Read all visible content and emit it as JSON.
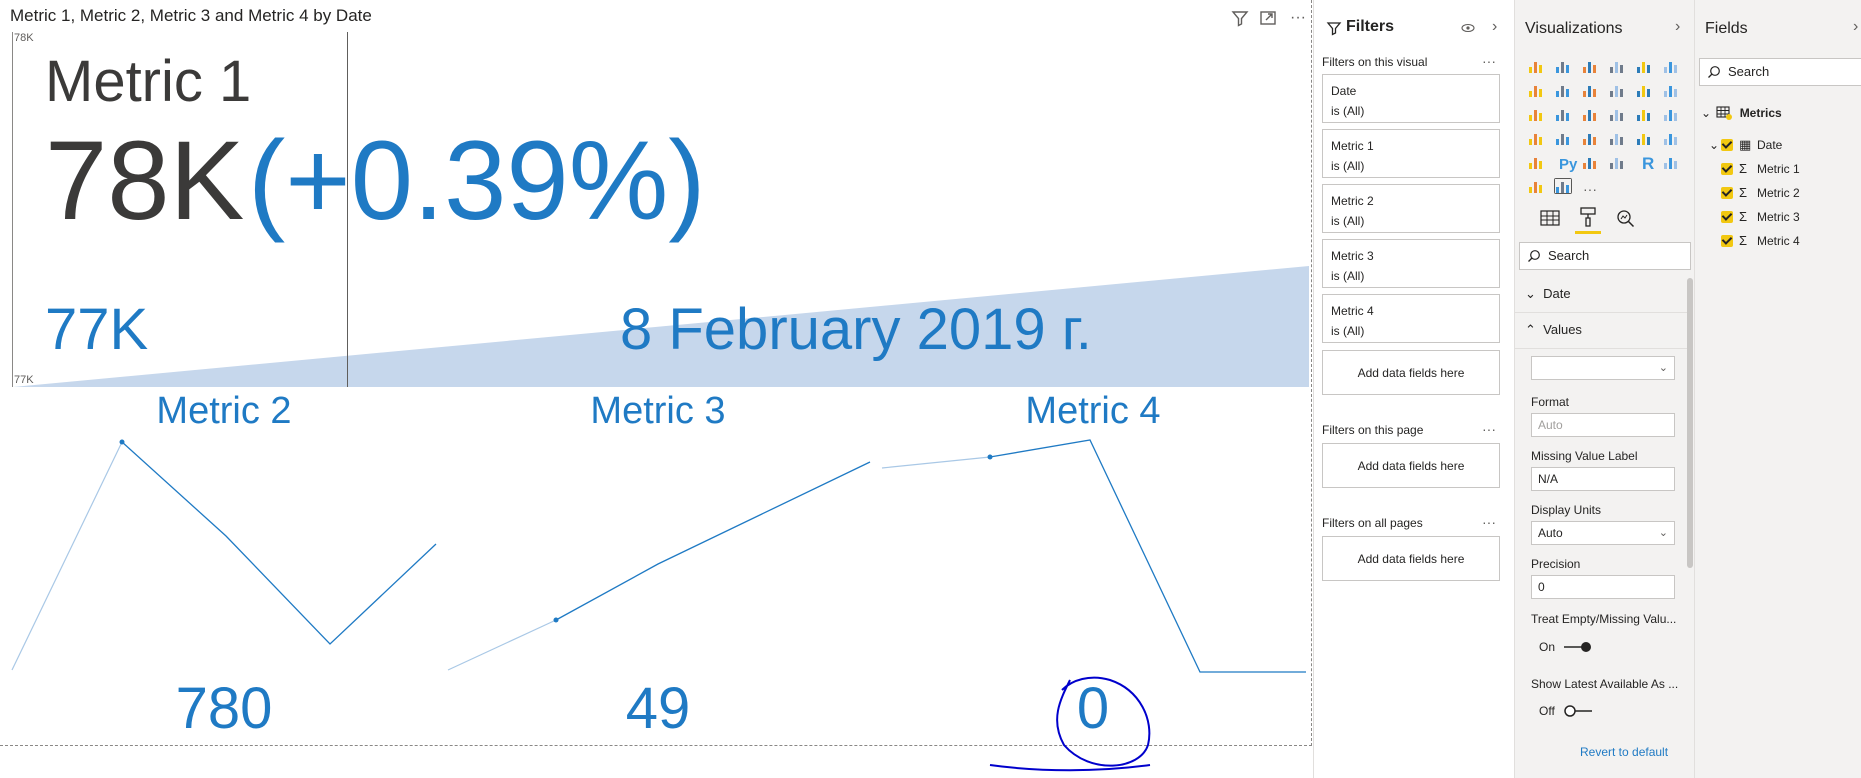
{
  "visual": {
    "title": "Metric 1, Metric 2, Metric 3 and Metric 4 by Date",
    "axis_top": "78K",
    "axis_bottom": "77K",
    "main_kpi": {
      "label": "Metric 1",
      "value": "78K",
      "change": "(+0.39%)",
      "previous": "77K",
      "date": "8 February 2019 г."
    },
    "sub_kpis": [
      {
        "label": "Metric 2",
        "value": "780"
      },
      {
        "label": "Metric 3",
        "value": "49"
      },
      {
        "label": "Metric 4",
        "value": "0"
      }
    ]
  },
  "filters": {
    "title": "Filters",
    "on_visual": "Filters on this visual",
    "cards": [
      {
        "field": "Date",
        "state": "is (All)"
      },
      {
        "field": "Metric 1",
        "state": "is (All)"
      },
      {
        "field": "Metric 2",
        "state": "is (All)"
      },
      {
        "field": "Metric 3",
        "state": "is (All)"
      },
      {
        "field": "Metric 4",
        "state": "is (All)"
      }
    ],
    "add_label": "Add data fields here",
    "on_page": "Filters on this page",
    "on_all": "Filters on all pages",
    "ellipsis": "···"
  },
  "visualizations": {
    "title": "Visualizations",
    "search_placeholder": "Search",
    "sections": {
      "date": "Date",
      "values": "Values"
    },
    "format_label": "Format",
    "format_placeholder": "Auto",
    "missing_label": "Missing Value Label",
    "missing_value": "N/A",
    "units_label": "Display Units",
    "units_value": "Auto",
    "precision_label": "Precision",
    "precision_value": "0",
    "treat_label": "Treat Empty/Missing Valu...",
    "treat_state": "On",
    "latest_label": "Show Latest Available As ...",
    "latest_state": "Off",
    "revert": "Revert to default",
    "py": "Py",
    "r": "R",
    "more": "···"
  },
  "fields": {
    "title": "Fields",
    "search_placeholder": "Search",
    "table": "Metrics",
    "items": [
      "Date",
      "Metric 1",
      "Metric 2",
      "Metric 3",
      "Metric 4"
    ]
  },
  "colors": {
    "accent": "#1f7ac4",
    "area": "#c6d7ec",
    "annotation": "#0000cc"
  }
}
